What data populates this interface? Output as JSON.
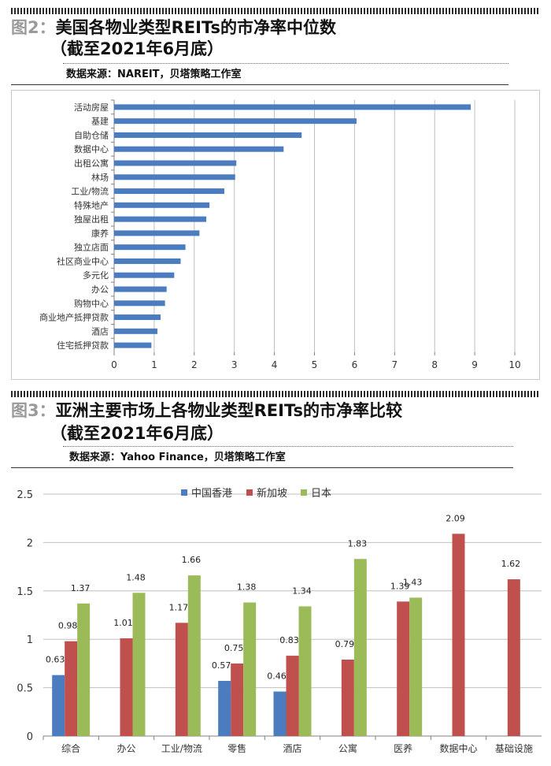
{
  "chart_data": [
    {
      "type": "bar",
      "orientation": "horizontal",
      "figure_label": "图2：",
      "title_line1": "美国各物业类型REITs的市净率中位数",
      "title_line2": "（截至2021年6月底）",
      "source": "数据来源：NAREIT，贝塔策略工作室",
      "categories": [
        "活动房屋",
        "基建",
        "自助仓储",
        "数据中心",
        "出租公寓",
        "林场",
        "工业/物流",
        "特殊地产",
        "独屋出租",
        "康养",
        "独立店面",
        "社区商业中心",
        "多元化",
        "办公",
        "购物中心",
        "商业地产抵押贷款",
        "酒店",
        "住宅抵押贷款"
      ],
      "values": [
        8.9,
        6.05,
        4.68,
        4.23,
        3.05,
        3.02,
        2.75,
        2.38,
        2.3,
        2.13,
        1.78,
        1.66,
        1.5,
        1.31,
        1.27,
        1.16,
        1.08,
        0.93
      ],
      "xlim": [
        0,
        10
      ],
      "xticks": [
        "0",
        "1",
        "2",
        "3",
        "4",
        "5",
        "6",
        "7",
        "8",
        "9",
        "10"
      ],
      "bar_color": "#4a7cbf",
      "grid": true
    },
    {
      "type": "bar",
      "orientation": "vertical",
      "figure_label": "图3：",
      "title_line1": "亚洲主要市场上各物业类型REITs的市净率比较",
      "title_line2": "（截至2021年6月底）",
      "source": "数据来源：Yahoo Finance，贝塔策略工作室",
      "categories": [
        "综合",
        "办公",
        "工业/物流",
        "零售",
        "酒店",
        "公寓",
        "医养",
        "数据中心",
        "基础设施"
      ],
      "series": [
        {
          "name": "中国香港",
          "color": "#4a7cbf",
          "values": [
            0.63,
            null,
            null,
            0.57,
            0.46,
            null,
            null,
            null,
            null
          ],
          "labels": [
            "0.63",
            "",
            "",
            "0.57",
            "0.46",
            "",
            "",
            "",
            ""
          ]
        },
        {
          "name": "新加坡",
          "color": "#c0504d",
          "values": [
            0.98,
            1.01,
            1.17,
            0.75,
            0.83,
            0.79,
            1.39,
            2.09,
            1.62
          ],
          "labels": [
            "0.98",
            "1.01",
            "1.17",
            "0.75",
            "0.83",
            "0.79",
            "1.39",
            "2.09",
            "1.62"
          ]
        },
        {
          "name": "日本",
          "color": "#9bbb59",
          "values": [
            1.37,
            1.48,
            1.66,
            1.38,
            1.34,
            1.83,
            1.43,
            null,
            null
          ],
          "labels": [
            "1.37",
            "1.48",
            "1.66",
            "1.38",
            "1.34",
            "1.83",
            "1.43",
            "",
            ""
          ]
        }
      ],
      "ylim": [
        0,
        2.5
      ],
      "yticks": [
        "0",
        "0.5",
        "1",
        "1.5",
        "2",
        "2.5"
      ],
      "legend": "top-center",
      "grid": true
    }
  ]
}
